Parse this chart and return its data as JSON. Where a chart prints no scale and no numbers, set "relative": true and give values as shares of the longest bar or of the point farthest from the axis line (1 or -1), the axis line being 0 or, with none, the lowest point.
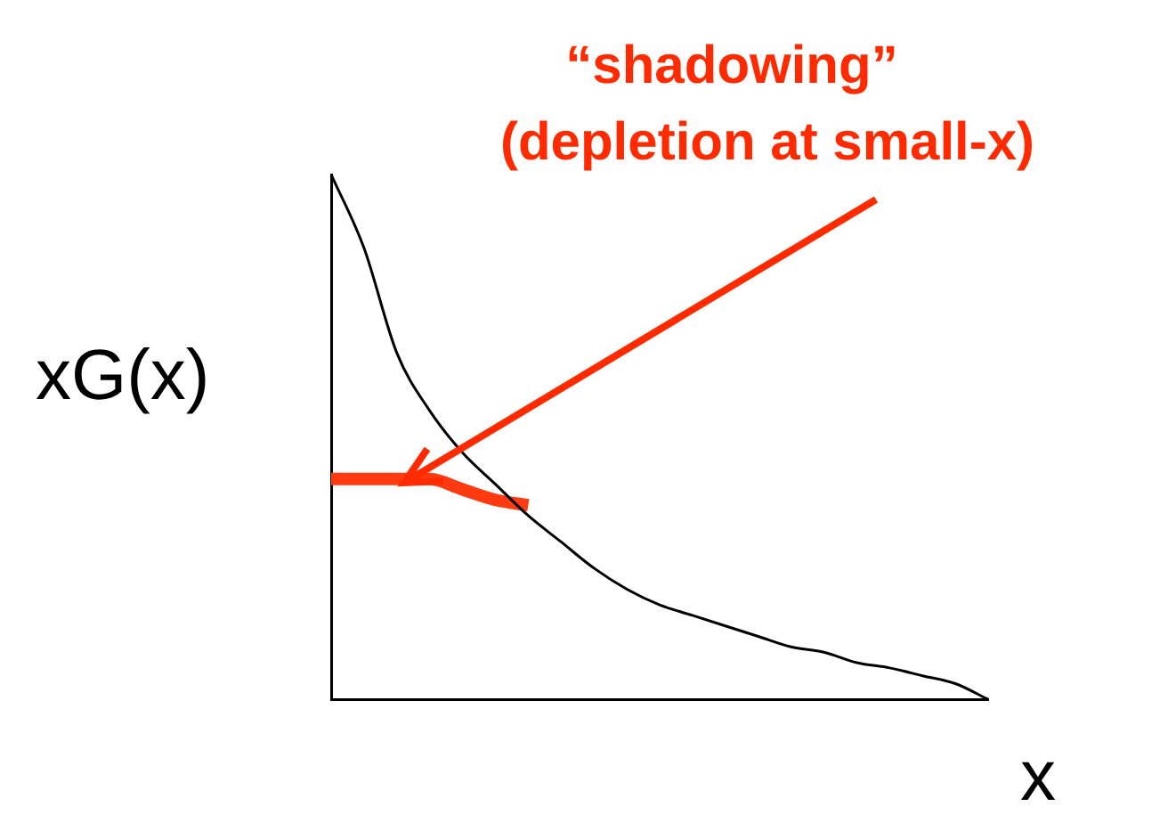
{
  "chart_data": {
    "type": "line",
    "relative": true,
    "xlabel": "x",
    "ylabel": "xG(x)",
    "legend": false,
    "grid": false,
    "marker": "none",
    "annotations": [
      "“shadowing”",
      "(depletion at small-x)"
    ],
    "categories": [
      null,
      null,
      null,
      null,
      null,
      null,
      null,
      null,
      null,
      null,
      null,
      null,
      null,
      null,
      null,
      null,
      null,
      null,
      null,
      null,
      null
    ],
    "series": [
      {
        "color": "#000000",
        "values": [
          1.0,
          0.86,
          0.66,
          0.55,
          0.47,
          0.41,
          0.35,
          0.3,
          0.25,
          0.21,
          0.18,
          0.16,
          0.14,
          0.12,
          0.1,
          0.09,
          0.07,
          0.06,
          0.045,
          0.03,
          0
        ]
      },
      {
        "color": "#ff3a10",
        "values": [
          0.42,
          0.42,
          0.42,
          0.42,
          0.4,
          0.38,
          0.37,
          null,
          null,
          null,
          null,
          null,
          null,
          null,
          null,
          null,
          null,
          null,
          null,
          null,
          null
        ]
      }
    ]
  }
}
